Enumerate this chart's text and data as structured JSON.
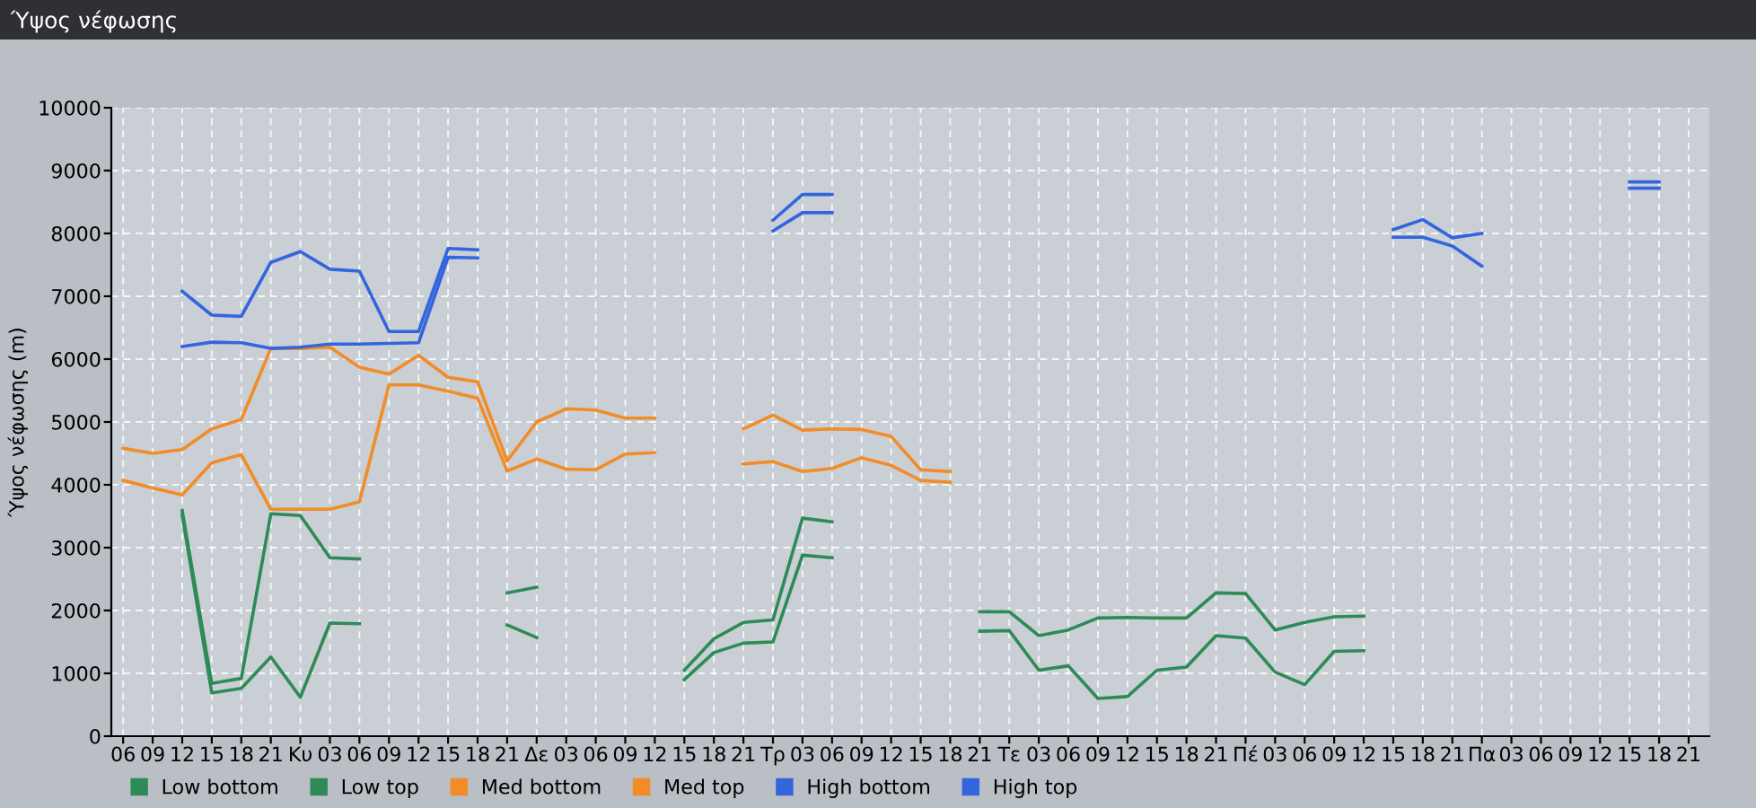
{
  "chart_data": {
    "type": "line",
    "title": "Ύψος νέφωσης",
    "ylabel": "Ύψος νέφωσης (m)",
    "categories": [
      "06",
      "09",
      "12",
      "15",
      "18",
      "21",
      "Κυ",
      "03",
      "06",
      "09",
      "12",
      "15",
      "18",
      "21",
      "Δε",
      "03",
      "06",
      "09",
      "12",
      "15",
      "18",
      "21",
      "Τρ",
      "03",
      "06",
      "09",
      "12",
      "15",
      "18",
      "21",
      "Τε",
      "03",
      "06",
      "09",
      "12",
      "15",
      "18",
      "21",
      "Πέ",
      "03",
      "06",
      "09",
      "12",
      "15",
      "18",
      "21",
      "Πα",
      "03",
      "06",
      "09",
      "12",
      "15",
      "18",
      "21"
    ],
    "ylim": [
      0,
      10000
    ],
    "yticks": [
      0,
      1000,
      2000,
      3000,
      4000,
      5000,
      6000,
      7000,
      8000,
      9000,
      10000
    ],
    "grid": true,
    "legend": "bottom",
    "marker": "none",
    "line_style": "solid",
    "series": [
      {
        "name": "Low bottom",
        "color": "#2e8b57",
        "values": [
          null,
          null,
          3520,
          690,
          760,
          1260,
          620,
          1800,
          1790,
          null,
          null,
          null,
          null,
          1770,
          1570,
          null,
          null,
          null,
          null,
          900,
          1330,
          1480,
          1500,
          2880,
          2840,
          null,
          null,
          null,
          null,
          1670,
          1680,
          1050,
          1120,
          600,
          630,
          1050,
          1100,
          1600,
          1560,
          1020,
          820,
          1350,
          1360,
          null,
          null,
          null,
          null,
          null,
          null,
          null,
          null,
          null,
          null,
          null
        ]
      },
      {
        "name": "Low top",
        "color": "#2e8b57",
        "values": [
          null,
          null,
          3590,
          840,
          920,
          3540,
          3510,
          2840,
          2820,
          null,
          null,
          null,
          null,
          2280,
          2370,
          null,
          null,
          null,
          null,
          1050,
          1550,
          1810,
          1850,
          3470,
          3410,
          null,
          null,
          null,
          null,
          1980,
          1980,
          1600,
          1690,
          1880,
          1890,
          1880,
          1880,
          2280,
          2270,
          1690,
          1810,
          1900,
          1910,
          null,
          null,
          null,
          null,
          null,
          null,
          null,
          null,
          null,
          null,
          null
        ]
      },
      {
        "name": "Med bottom",
        "color": "#f28c28",
        "values": [
          4070,
          3950,
          3840,
          4350,
          4480,
          3610,
          3610,
          3610,
          3730,
          5590,
          5590,
          5490,
          5380,
          4220,
          4410,
          4250,
          4240,
          4490,
          4510,
          null,
          null,
          4330,
          4370,
          4210,
          4260,
          4430,
          4310,
          4070,
          4040,
          null,
          null,
          null,
          null,
          null,
          null,
          null,
          null,
          null,
          null,
          null,
          null,
          null,
          null,
          null,
          null,
          null,
          null,
          null,
          null,
          null,
          null,
          null,
          null,
          null
        ]
      },
      {
        "name": "Med top",
        "color": "#f28c28",
        "values": [
          4580,
          4500,
          4560,
          4890,
          5040,
          6170,
          6170,
          6190,
          5870,
          5760,
          6060,
          5710,
          5640,
          4380,
          5000,
          5210,
          5190,
          5060,
          5060,
          null,
          null,
          4890,
          5110,
          4870,
          4890,
          4880,
          4770,
          4240,
          4210,
          null,
          null,
          null,
          null,
          null,
          null,
          null,
          null,
          null,
          null,
          null,
          null,
          null,
          null,
          null,
          null,
          null,
          null,
          null,
          null,
          null,
          null,
          null,
          null,
          null
        ]
      },
      {
        "name": "High bottom",
        "color": "#3366dd",
        "values": [
          null,
          null,
          6200,
          6270,
          6260,
          6170,
          6190,
          6240,
          6240,
          6250,
          6260,
          7620,
          7610,
          null,
          null,
          null,
          null,
          null,
          null,
          null,
          null,
          null,
          8040,
          8330,
          8330,
          null,
          null,
          null,
          null,
          null,
          null,
          null,
          null,
          null,
          null,
          null,
          null,
          null,
          null,
          null,
          null,
          null,
          null,
          7940,
          7940,
          7800,
          7480,
          null,
          null,
          null,
          null,
          8720,
          8720,
          null
        ]
      },
      {
        "name": "High top",
        "color": "#3366dd",
        "values": [
          null,
          null,
          7080,
          6700,
          6680,
          7540,
          7710,
          7430,
          7400,
          6440,
          6440,
          7760,
          7740,
          null,
          null,
          null,
          null,
          null,
          null,
          null,
          null,
          null,
          8210,
          8620,
          8620,
          null,
          null,
          null,
          null,
          null,
          null,
          null,
          null,
          null,
          null,
          null,
          null,
          null,
          null,
          null,
          null,
          null,
          null,
          8060,
          8220,
          7930,
          8000,
          null,
          null,
          null,
          null,
          8820,
          8820,
          null
        ]
      }
    ]
  }
}
